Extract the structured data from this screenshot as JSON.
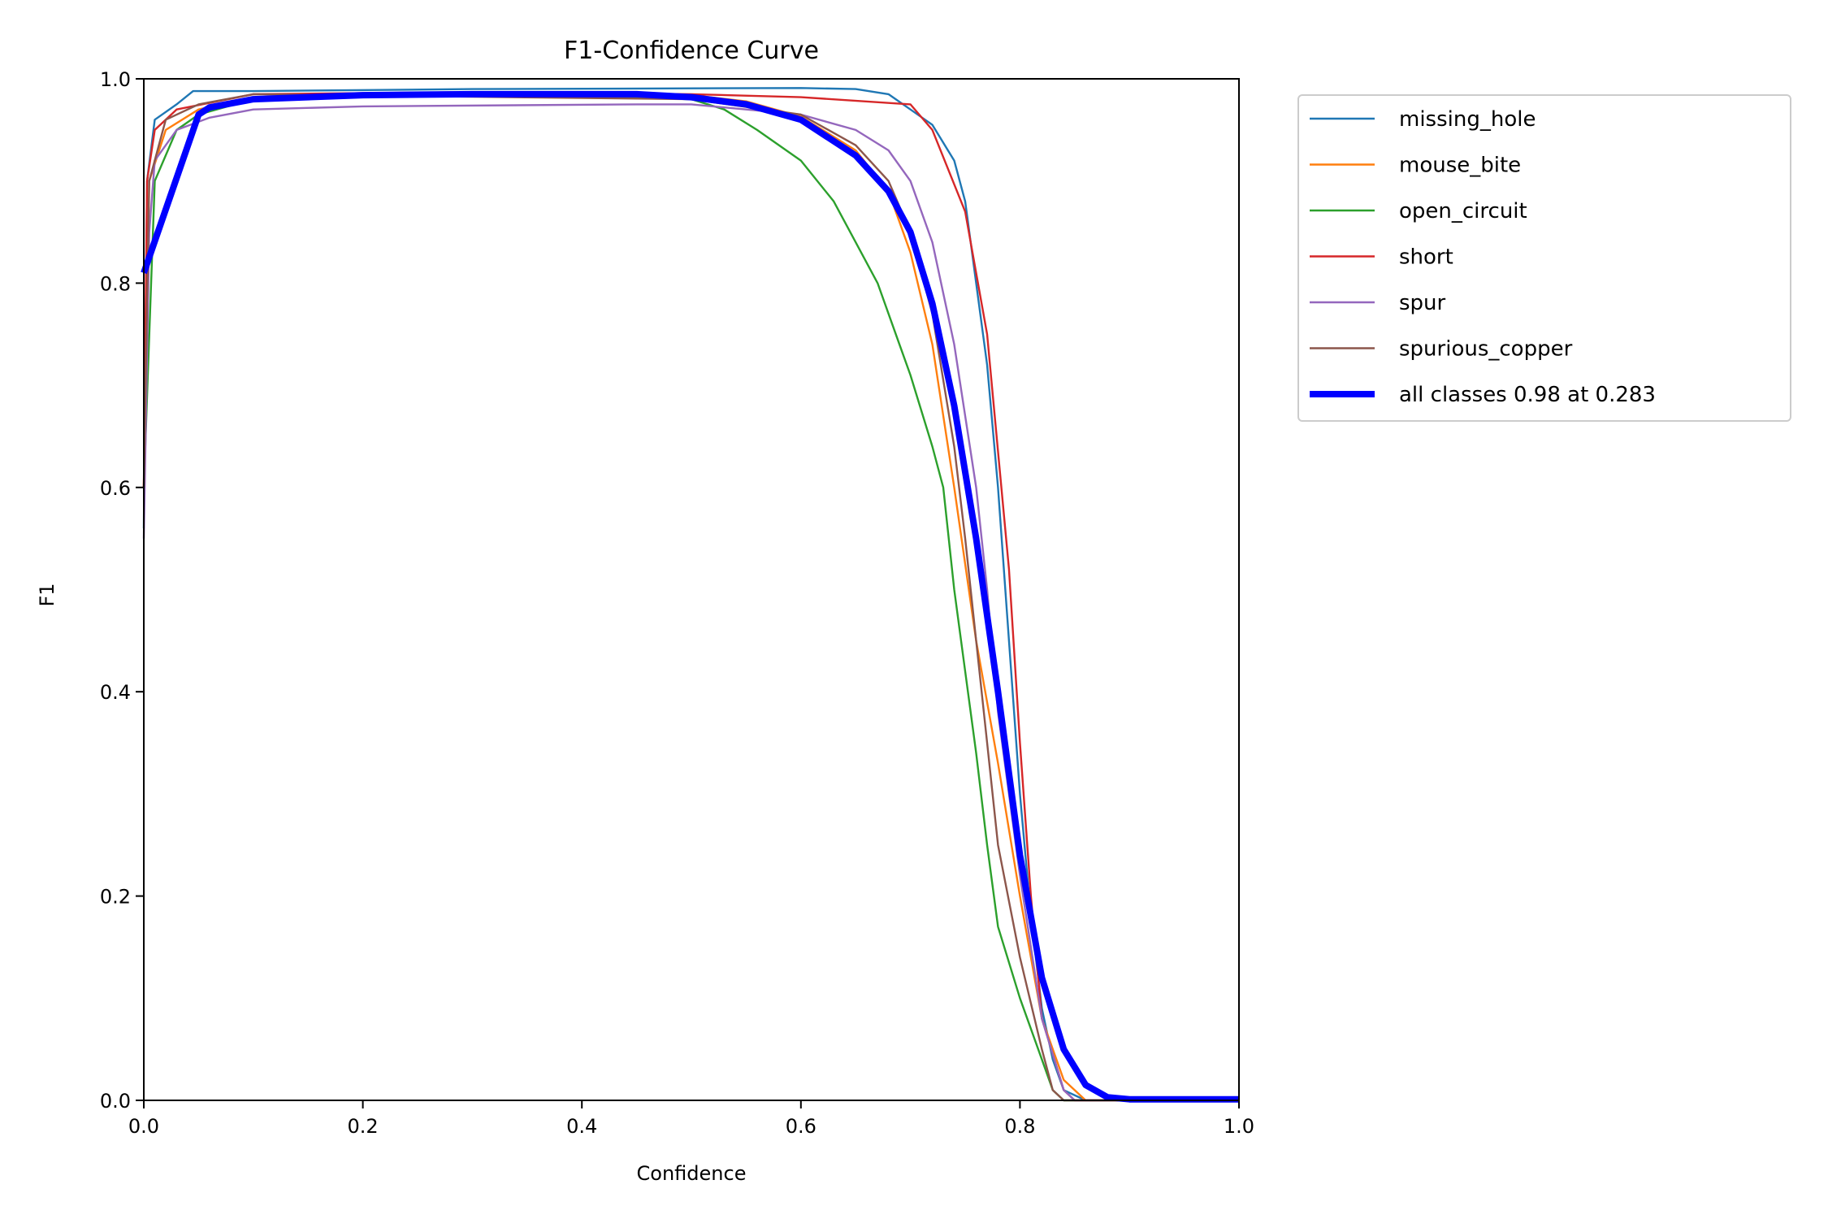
{
  "chart_data": {
    "type": "line",
    "title": "F1-Confidence Curve",
    "xlabel": "Confidence",
    "ylabel": "F1",
    "xlim": [
      0,
      1
    ],
    "ylim": [
      0,
      1
    ],
    "xticks": [
      "0.0",
      "0.2",
      "0.4",
      "0.6",
      "0.8",
      "1.0"
    ],
    "yticks": [
      "0.0",
      "0.2",
      "0.4",
      "0.6",
      "0.8",
      "1.0"
    ],
    "grid": false,
    "legend_position": "outside-top-right",
    "series": [
      {
        "name": "missing_hole",
        "color": "#1f77b4",
        "width": "thin",
        "points": [
          [
            0,
            0.56
          ],
          [
            0.003,
            0.9
          ],
          [
            0.01,
            0.96
          ],
          [
            0.03,
            0.975
          ],
          [
            0.045,
            0.988
          ],
          [
            0.1,
            0.988
          ],
          [
            0.3,
            0.99
          ],
          [
            0.6,
            0.991
          ],
          [
            0.65,
            0.99
          ],
          [
            0.68,
            0.985
          ],
          [
            0.7,
            0.97
          ],
          [
            0.72,
            0.955
          ],
          [
            0.74,
            0.92
          ],
          [
            0.75,
            0.88
          ],
          [
            0.76,
            0.8
          ],
          [
            0.77,
            0.72
          ],
          [
            0.78,
            0.6
          ],
          [
            0.79,
            0.45
          ],
          [
            0.8,
            0.3
          ],
          [
            0.81,
            0.18
          ],
          [
            0.82,
            0.09
          ],
          [
            0.83,
            0.04
          ],
          [
            0.84,
            0.01
          ],
          [
            0.86,
            0
          ],
          [
            1,
            0
          ]
        ]
      },
      {
        "name": "mouse_bite",
        "color": "#ff7f0e",
        "width": "thin",
        "points": [
          [
            0,
            0.6
          ],
          [
            0.005,
            0.9
          ],
          [
            0.02,
            0.95
          ],
          [
            0.05,
            0.97
          ],
          [
            0.1,
            0.982
          ],
          [
            0.3,
            0.986
          ],
          [
            0.5,
            0.984
          ],
          [
            0.55,
            0.978
          ],
          [
            0.6,
            0.963
          ],
          [
            0.65,
            0.93
          ],
          [
            0.68,
            0.89
          ],
          [
            0.7,
            0.83
          ],
          [
            0.72,
            0.74
          ],
          [
            0.74,
            0.6
          ],
          [
            0.76,
            0.45
          ],
          [
            0.78,
            0.33
          ],
          [
            0.8,
            0.2
          ],
          [
            0.82,
            0.08
          ],
          [
            0.84,
            0.02
          ],
          [
            0.86,
            0
          ],
          [
            1,
            0
          ]
        ]
      },
      {
        "name": "open_circuit",
        "color": "#2ca02c",
        "width": "thin",
        "points": [
          [
            0,
            0.6
          ],
          [
            0.01,
            0.9
          ],
          [
            0.03,
            0.95
          ],
          [
            0.05,
            0.965
          ],
          [
            0.1,
            0.98
          ],
          [
            0.3,
            0.985
          ],
          [
            0.5,
            0.98
          ],
          [
            0.53,
            0.97
          ],
          [
            0.56,
            0.95
          ],
          [
            0.6,
            0.92
          ],
          [
            0.63,
            0.88
          ],
          [
            0.65,
            0.84
          ],
          [
            0.67,
            0.8
          ],
          [
            0.69,
            0.74
          ],
          [
            0.7,
            0.71
          ],
          [
            0.72,
            0.64
          ],
          [
            0.73,
            0.6
          ],
          [
            0.74,
            0.5
          ],
          [
            0.75,
            0.42
          ],
          [
            0.76,
            0.34
          ],
          [
            0.77,
            0.25
          ],
          [
            0.78,
            0.17
          ],
          [
            0.8,
            0.1
          ],
          [
            0.82,
            0.04
          ],
          [
            0.83,
            0.01
          ],
          [
            0.84,
            0
          ],
          [
            1,
            0
          ]
        ]
      },
      {
        "name": "short",
        "color": "#d62728",
        "width": "thin",
        "points": [
          [
            0,
            0.6
          ],
          [
            0.003,
            0.9
          ],
          [
            0.01,
            0.95
          ],
          [
            0.03,
            0.97
          ],
          [
            0.1,
            0.985
          ],
          [
            0.3,
            0.987
          ],
          [
            0.5,
            0.985
          ],
          [
            0.6,
            0.982
          ],
          [
            0.7,
            0.975
          ],
          [
            0.72,
            0.95
          ],
          [
            0.75,
            0.87
          ],
          [
            0.77,
            0.75
          ],
          [
            0.79,
            0.52
          ],
          [
            0.8,
            0.35
          ],
          [
            0.81,
            0.2
          ],
          [
            0.82,
            0.08
          ],
          [
            0.84,
            0.01
          ],
          [
            0.85,
            0
          ],
          [
            1,
            0
          ]
        ]
      },
      {
        "name": "spur",
        "color": "#9467bd",
        "width": "thin",
        "points": [
          [
            0,
            0.55
          ],
          [
            0.005,
            0.85
          ],
          [
            0.01,
            0.92
          ],
          [
            0.03,
            0.95
          ],
          [
            0.06,
            0.962
          ],
          [
            0.1,
            0.97
          ],
          [
            0.2,
            0.973
          ],
          [
            0.45,
            0.975
          ],
          [
            0.5,
            0.975
          ],
          [
            0.55,
            0.97
          ],
          [
            0.6,
            0.965
          ],
          [
            0.65,
            0.95
          ],
          [
            0.68,
            0.93
          ],
          [
            0.7,
            0.9
          ],
          [
            0.72,
            0.84
          ],
          [
            0.74,
            0.74
          ],
          [
            0.75,
            0.67
          ],
          [
            0.76,
            0.6
          ],
          [
            0.77,
            0.5
          ],
          [
            0.78,
            0.38
          ],
          [
            0.8,
            0.22
          ],
          [
            0.82,
            0.08
          ],
          [
            0.84,
            0.01
          ],
          [
            0.85,
            0
          ],
          [
            1,
            0
          ]
        ]
      },
      {
        "name": "spurious_copper",
        "color": "#8c564b",
        "width": "thin",
        "points": [
          [
            0,
            0.6
          ],
          [
            0.005,
            0.9
          ],
          [
            0.02,
            0.96
          ],
          [
            0.05,
            0.975
          ],
          [
            0.1,
            0.985
          ],
          [
            0.5,
            0.98
          ],
          [
            0.6,
            0.965
          ],
          [
            0.65,
            0.935
          ],
          [
            0.68,
            0.9
          ],
          [
            0.7,
            0.85
          ],
          [
            0.72,
            0.77
          ],
          [
            0.74,
            0.64
          ],
          [
            0.75,
            0.55
          ],
          [
            0.76,
            0.45
          ],
          [
            0.77,
            0.35
          ],
          [
            0.78,
            0.25
          ],
          [
            0.8,
            0.14
          ],
          [
            0.82,
            0.05
          ],
          [
            0.83,
            0.01
          ],
          [
            0.84,
            0
          ],
          [
            1,
            0
          ]
        ]
      },
      {
        "name": "all classes 0.98 at 0.283",
        "color": "#0000ff",
        "width": "thick",
        "points": [
          [
            0,
            0.81
          ],
          [
            0.05,
            0.965
          ],
          [
            0.06,
            0.972
          ],
          [
            0.1,
            0.98
          ],
          [
            0.2,
            0.984
          ],
          [
            0.3,
            0.985
          ],
          [
            0.45,
            0.985
          ],
          [
            0.5,
            0.982
          ],
          [
            0.55,
            0.975
          ],
          [
            0.6,
            0.96
          ],
          [
            0.65,
            0.925
          ],
          [
            0.68,
            0.89
          ],
          [
            0.7,
            0.85
          ],
          [
            0.72,
            0.78
          ],
          [
            0.74,
            0.68
          ],
          [
            0.76,
            0.55
          ],
          [
            0.78,
            0.4
          ],
          [
            0.8,
            0.24
          ],
          [
            0.82,
            0.12
          ],
          [
            0.84,
            0.05
          ],
          [
            0.86,
            0.015
          ],
          [
            0.88,
            0.003
          ],
          [
            0.9,
            0.001
          ],
          [
            1,
            0.001
          ]
        ]
      }
    ]
  }
}
